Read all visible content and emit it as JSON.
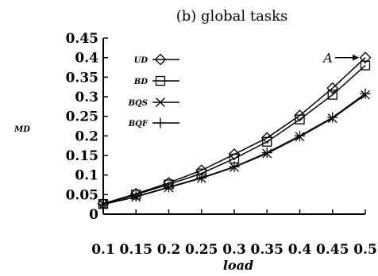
{
  "chart_data": {
    "type": "line",
    "title": "(b) global tasks",
    "xlabel": "load",
    "ylabel": "MD",
    "x": [
      0.1,
      0.15,
      0.2,
      0.25,
      0.3,
      0.35,
      0.4,
      0.45,
      0.5
    ],
    "xticks": [
      "0.1",
      "0.15",
      "0.2",
      "0.25",
      "0.3",
      "0.35",
      "0.4",
      "0.45",
      "0.5"
    ],
    "yticks": [
      "0",
      "0.05",
      "0.1",
      "0.15",
      "0.2",
      "0.25",
      "0.3",
      "0.35",
      "0.4",
      "0.45"
    ],
    "xlim": [
      0.1,
      0.5
    ],
    "ylim": [
      0,
      0.45
    ],
    "grid": false,
    "legend_position": "top-left",
    "series": [
      {
        "name": "UD",
        "marker": "diamond",
        "values": [
          0.027,
          0.052,
          0.08,
          0.112,
          0.153,
          0.195,
          0.252,
          0.322,
          0.4
        ]
      },
      {
        "name": "BD",
        "marker": "square",
        "values": [
          0.026,
          0.05,
          0.076,
          0.104,
          0.142,
          0.185,
          0.242,
          0.305,
          0.38
        ]
      },
      {
        "name": "BQS",
        "marker": "x",
        "values": [
          0.025,
          0.044,
          0.068,
          0.092,
          0.12,
          0.155,
          0.198,
          0.245,
          0.305
        ]
      },
      {
        "name": "BQF",
        "marker": "plus",
        "values": [
          0.025,
          0.045,
          0.069,
          0.093,
          0.121,
          0.157,
          0.2,
          0.247,
          0.308
        ]
      }
    ],
    "annotations": [
      {
        "text": "A",
        "x": 0.5,
        "y": 0.4
      }
    ]
  }
}
